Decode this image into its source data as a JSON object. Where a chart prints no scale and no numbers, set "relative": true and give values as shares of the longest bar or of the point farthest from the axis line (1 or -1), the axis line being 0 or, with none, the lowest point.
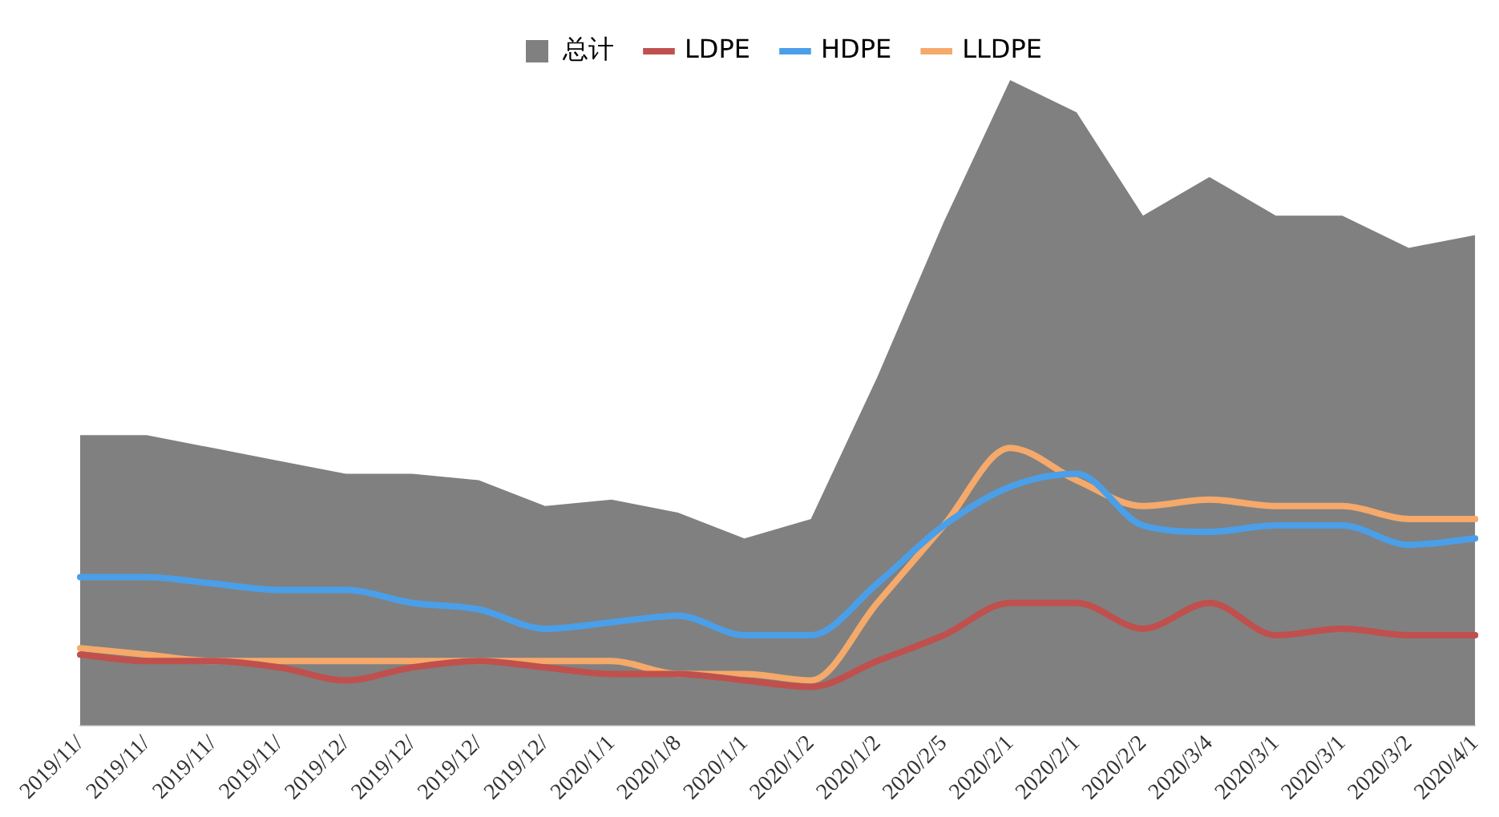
{
  "chart_data": {
    "type": "line",
    "relative": true,
    "legend": "top",
    "marker": "none",
    "line_style": "solid",
    "categories": [
      "2019/11/",
      "2019/11/",
      "2019/11/",
      "2019/11/",
      "2019/12/",
      "2019/12/",
      "2019/12/",
      "2019/12/",
      "2020/1/1",
      "2020/1/8",
      "2020/1/1",
      "2020/1/2",
      "2020/1/2",
      "2020/2/5",
      "2020/2/1",
      "2020/2/1",
      "2020/2/2",
      "2020/3/4",
      "2020/3/1",
      "2020/3/1",
      "2020/3/2",
      "2020/4/1"
    ],
    "series": [
      {
        "name": "总计",
        "type": "area",
        "color": "#808080",
        "values": [
          0.45,
          0.45,
          0.43,
          0.41,
          0.39,
          0.39,
          0.38,
          0.34,
          0.35,
          0.33,
          0.29,
          0.32,
          0.54,
          0.78,
          1,
          0.95,
          0.79,
          0.85,
          0.79,
          0.79,
          0.74,
          0.76
        ]
      },
      {
        "name": "LDPE",
        "type": "line",
        "color": "#c0504d",
        "values": [
          0.11,
          0.1,
          0.1,
          0.09,
          0.07,
          0.09,
          0.1,
          0.09,
          0.08,
          0.08,
          0.07,
          0.06,
          0.1,
          0.14,
          0.19,
          0.19,
          0.15,
          0.19,
          0.14,
          0.15,
          0.14,
          0.14
        ]
      },
      {
        "name": "HDPE",
        "type": "line",
        "color": "#4a9fe8",
        "values": [
          0.23,
          0.23,
          0.22,
          0.21,
          0.21,
          0.19,
          0.18,
          0.15,
          0.16,
          0.17,
          0.14,
          0.14,
          0.22,
          0.31,
          0.37,
          0.39,
          0.31,
          0.3,
          0.31,
          0.31,
          0.28,
          0.29
        ]
      },
      {
        "name": "LLDPE",
        "type": "line",
        "color": "#f5a96a",
        "values": [
          0.12,
          0.11,
          0.1,
          0.1,
          0.1,
          0.1,
          0.1,
          0.1,
          0.1,
          0.08,
          0.08,
          0.07,
          0.19,
          0.31,
          0.43,
          0.38,
          0.34,
          0.35,
          0.34,
          0.34,
          0.32,
          0.32
        ]
      }
    ]
  }
}
